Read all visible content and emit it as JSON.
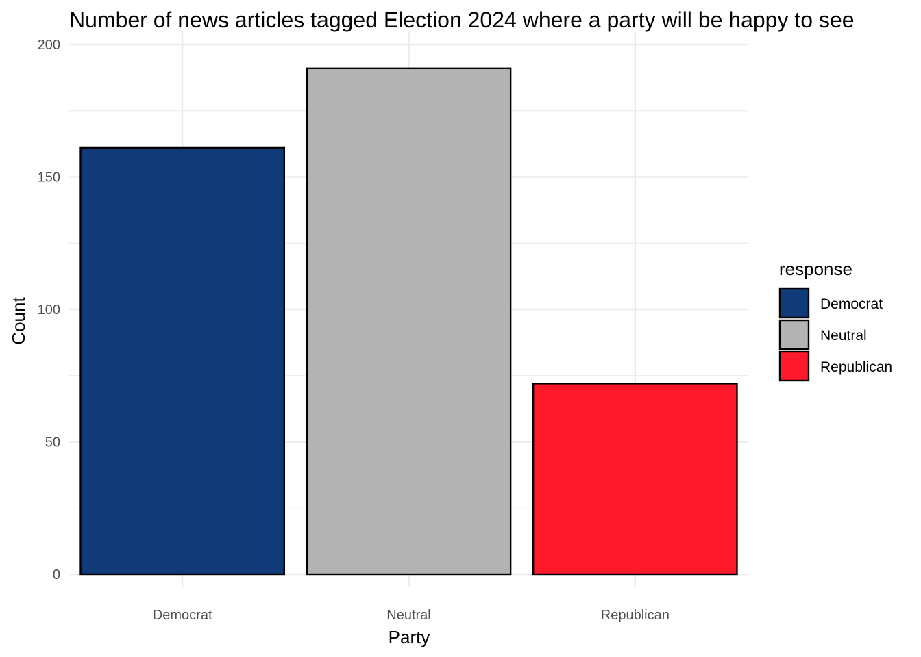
{
  "chart_data": {
    "type": "bar",
    "title": "Number of news articles tagged Election 2024 where a party will be happy to see",
    "xlabel": "Party",
    "ylabel": "Count",
    "categories": [
      "Democrat",
      "Neutral",
      "Republican"
    ],
    "values": [
      161,
      191,
      72
    ],
    "colors": [
      "#113A78",
      "#B3B3B3",
      "#FF1A2B"
    ],
    "ylim": [
      0,
      200
    ],
    "yticks": [
      0,
      50,
      100,
      150,
      200
    ],
    "yticks_text": [
      "0",
      "50",
      "100",
      "150",
      "200"
    ],
    "grid": true,
    "legend": {
      "title": "response",
      "placement": "right",
      "entries": [
        {
          "label": "Democrat",
          "color": "#113A78"
        },
        {
          "label": "Neutral",
          "color": "#B3B3B3"
        },
        {
          "label": "Republican",
          "color": "#FF1A2B"
        }
      ]
    }
  }
}
